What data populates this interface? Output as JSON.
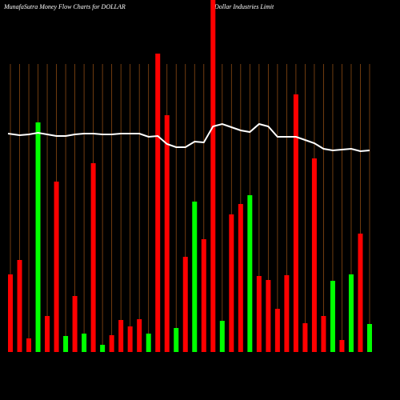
{
  "chart_data": {
    "type": "bar",
    "title": "MunafaSutra  Money Flow  Charts for DOLLAR",
    "subtitle": "Dollar Industries Limit",
    "series": [
      {
        "values": [
          97,
          115,
          17,
          287,
          45,
          213,
          20,
          70,
          23,
          236,
          9,
          21,
          40,
          32,
          41,
          23,
          373,
          296,
          30,
          119,
          188,
          141,
          460,
          39,
          172,
          185,
          196,
          95,
          90,
          54,
          96,
          322,
          36,
          242,
          45,
          89,
          15,
          97,
          148,
          35
        ],
        "colors": [
          "#ff0000",
          "#ff0000",
          "#ff0000",
          "#00ff00",
          "#ff0000",
          "#ff0000",
          "#00ff00",
          "#ff0000",
          "#00ff00",
          "#ff0000",
          "#00ff00",
          "#ff0000",
          "#ff0000",
          "#ff0000",
          "#ff0000",
          "#00ff00",
          "#ff0000",
          "#ff0000",
          "#00ff00",
          "#ff0000",
          "#00ff00",
          "#ff0000",
          "#ff0000",
          "#00ff00",
          "#ff0000",
          "#ff0000",
          "#00ff00",
          "#ff0000",
          "#ff0000",
          "#ff0000",
          "#ff0000",
          "#ff0000",
          "#ff0000",
          "#ff0000",
          "#ff0000",
          "#00ff00",
          "#ff0000",
          "#00ff00",
          "#ff0000",
          "#00ff00"
        ]
      },
      {
        "type": "line",
        "color": "#ffffff",
        "values": [
          273,
          271,
          272,
          274,
          272,
          270,
          270,
          272,
          273,
          273,
          272,
          272,
          273,
          273,
          273,
          269,
          270,
          260,
          256,
          256,
          263,
          262,
          282,
          285,
          281,
          277,
          275,
          285,
          282,
          269,
          269,
          269,
          265,
          261,
          254,
          252,
          253,
          254,
          251,
          252
        ]
      }
    ],
    "ylim": [
      0,
      440
    ]
  }
}
